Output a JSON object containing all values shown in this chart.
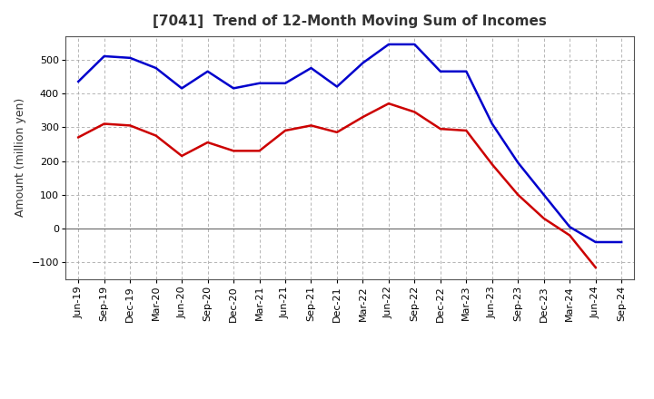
{
  "title": "[7041]  Trend of 12-Month Moving Sum of Incomes",
  "ylabel": "Amount (million yen)",
  "ylim": [
    -150,
    570
  ],
  "yticks": [
    -100,
    0,
    100,
    200,
    300,
    400,
    500
  ],
  "background_color": "#ffffff",
  "plot_bg_color": "#ffffff",
  "grid_color": "#aaaaaa",
  "x_labels": [
    "Jun-19",
    "Sep-19",
    "Dec-19",
    "Mar-20",
    "Jun-20",
    "Sep-20",
    "Dec-20",
    "Mar-21",
    "Jun-21",
    "Sep-21",
    "Dec-21",
    "Mar-22",
    "Jun-22",
    "Sep-22",
    "Dec-22",
    "Mar-23",
    "Jun-23",
    "Sep-23",
    "Dec-23",
    "Mar-24",
    "Jun-24",
    "Sep-24"
  ],
  "ordinary_income": [
    435,
    510,
    505,
    475,
    415,
    465,
    415,
    430,
    430,
    475,
    420,
    490,
    545,
    545,
    465,
    465,
    310,
    195,
    100,
    5,
    -40,
    -40
  ],
  "net_income": [
    270,
    310,
    305,
    275,
    215,
    255,
    230,
    230,
    290,
    305,
    285,
    330,
    370,
    345,
    295,
    290,
    190,
    100,
    30,
    -20,
    -115,
    null
  ],
  "ordinary_color": "#0000cc",
  "net_color": "#cc0000",
  "line_width": 1.8,
  "title_fontsize": 11,
  "title_color": "#333333",
  "ylabel_fontsize": 9,
  "tick_fontsize": 8,
  "legend_fontsize": 9
}
